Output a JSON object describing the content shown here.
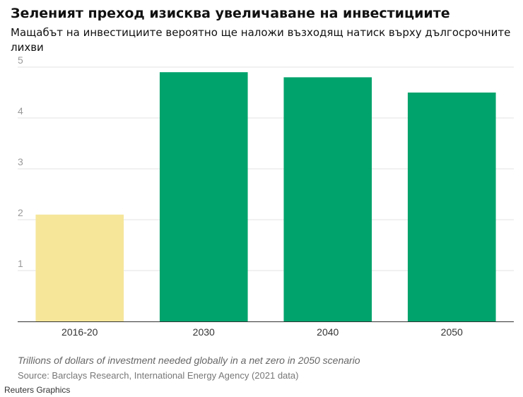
{
  "chart_data": {
    "type": "bar",
    "title": "Зеленият преход изисква увеличаване на инвестициите",
    "subtitle": "Мащабът на инвестициите вероятно ще наложи възходящ натиск върху дългосрочните лихви",
    "categories": [
      "2016-20",
      "2030",
      "2040",
      "2050"
    ],
    "values": [
      2.1,
      4.9,
      4.8,
      4.5
    ],
    "colors": [
      "#f5e69a",
      "#00a36c",
      "#00a36c",
      "#00a36c"
    ],
    "ylim": [
      0,
      5
    ],
    "yticks": [
      1,
      2,
      3,
      4,
      5
    ],
    "xlabel": "",
    "ylabel": "",
    "grid": true,
    "note": "Trillions of dollars of investment needed globally in a net zero in 2050 scenario",
    "source": "Source: Barclays Research, International Energy Agency (2021 data)",
    "credit": "Reuters Graphics"
  }
}
